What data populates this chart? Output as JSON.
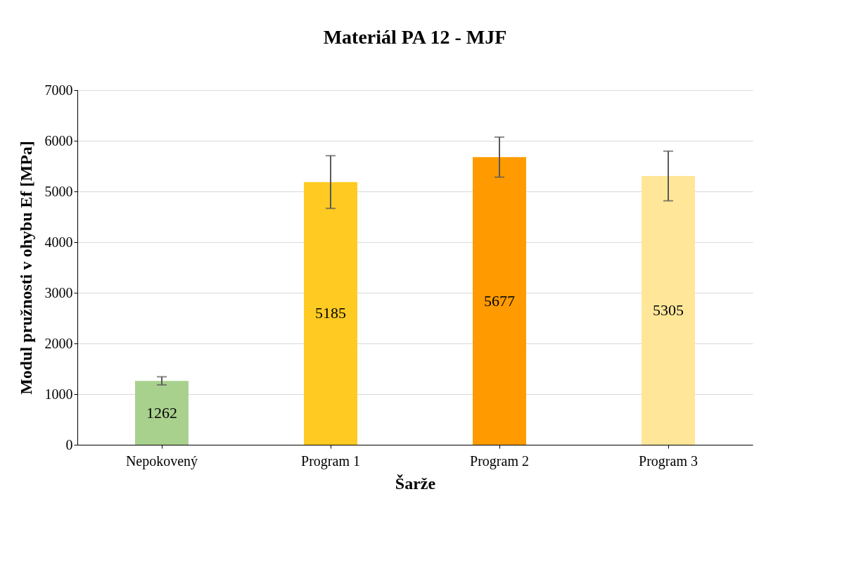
{
  "chart_data": {
    "type": "bar",
    "title": "Materiál PA 12 - MJF",
    "xlabel": "Šarže",
    "ylabel": "Modul pružnosti v ohybu Ef [MPa]",
    "categories": [
      "Nepokovený",
      "Program 1",
      "Program 2",
      "Program 3"
    ],
    "values": [
      1262,
      5185,
      5677,
      5305
    ],
    "colors": [
      "#a9d18e",
      "#ffca22",
      "#ff9b00",
      "#ffe699"
    ],
    "errors": [
      80,
      520,
      395,
      490
    ],
    "ylim": [
      0,
      7000
    ],
    "yticks": [
      0,
      1000,
      2000,
      3000,
      4000,
      5000,
      6000,
      7000
    ],
    "grid": "y",
    "data_labels": true
  }
}
